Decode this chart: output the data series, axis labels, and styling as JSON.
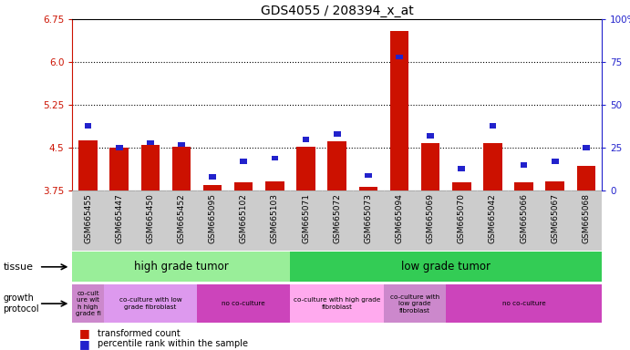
{
  "title": "GDS4055 / 208394_x_at",
  "samples": [
    "GSM665455",
    "GSM665447",
    "GSM665450",
    "GSM665452",
    "GSM665095",
    "GSM665102",
    "GSM665103",
    "GSM665071",
    "GSM665072",
    "GSM665073",
    "GSM665094",
    "GSM665069",
    "GSM665070",
    "GSM665042",
    "GSM665066",
    "GSM665067",
    "GSM665068"
  ],
  "red_values": [
    4.63,
    4.5,
    4.55,
    4.52,
    3.85,
    3.9,
    3.92,
    4.52,
    4.62,
    3.82,
    6.55,
    4.58,
    3.9,
    4.58,
    3.9,
    3.91,
    4.18
  ],
  "blue_pct": [
    38,
    25,
    28,
    27,
    8,
    17,
    19,
    30,
    33,
    9,
    78,
    32,
    13,
    38,
    15,
    17,
    25
  ],
  "ymin": 3.75,
  "ymax": 6.75,
  "yticks_left": [
    3.75,
    4.5,
    5.25,
    6.0,
    6.75
  ],
  "yticks_right": [
    0,
    25,
    50,
    75,
    100
  ],
  "grid_lines": [
    4.5,
    5.25,
    6.0
  ],
  "red_color": "#cc1100",
  "blue_color": "#2222cc",
  "bar_bg_color": "#cccccc",
  "tissue_high_color": "#99ee99",
  "tissue_low_color": "#33cc55",
  "growth_colors": [
    "#cc88cc",
    "#dd99ee",
    "#cc44bb",
    "#ffaaee",
    "#cc88cc",
    "#cc44bb"
  ],
  "tissue_groups": [
    {
      "label": "high grade tumor",
      "start": 0,
      "end": 7
    },
    {
      "label": "low grade tumor",
      "start": 7,
      "end": 17
    }
  ],
  "growth_groups": [
    {
      "label": "co-cult\nure wit\nh high\ngrade fi",
      "start": 0,
      "end": 1
    },
    {
      "label": "co-culture with low\ngrade fibroblast",
      "start": 1,
      "end": 4
    },
    {
      "label": "no co-culture",
      "start": 4,
      "end": 7
    },
    {
      "label": "co-culture with high grade\nfibroblast",
      "start": 7,
      "end": 10
    },
    {
      "label": "co-culture with\nlow grade\nfibroblast",
      "start": 10,
      "end": 12
    },
    {
      "label": "no co-culture",
      "start": 12,
      "end": 17
    }
  ]
}
